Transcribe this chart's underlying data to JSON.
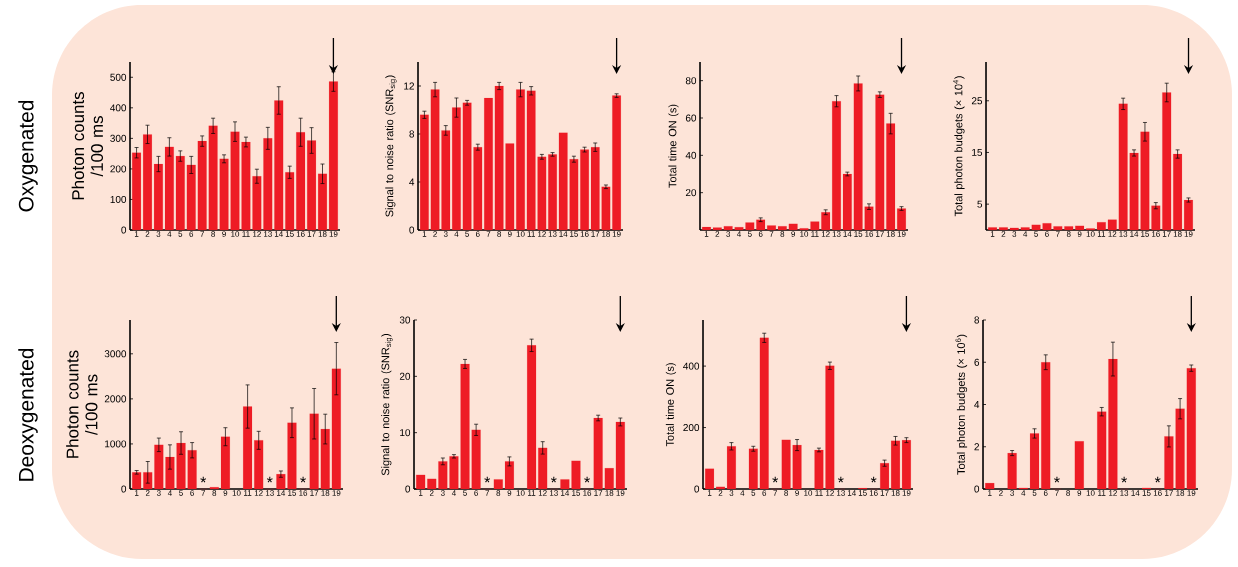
{
  "chart_data": [
    {
      "type": "bar",
      "ylabel": "Photon counts /100 ms",
      "annotations": [
        "Oxygenated"
      ],
      "categories": [
        "1",
        "2",
        "3",
        "4",
        "5",
        "6",
        "7",
        "8",
        "9",
        "10",
        "11",
        "12",
        "13",
        "14",
        "15",
        "16",
        "17",
        "18",
        "19"
      ],
      "color": "#ee1c25",
      "values": [
        253,
        313,
        216,
        272,
        242,
        213,
        291,
        341,
        233,
        322,
        288,
        176,
        300,
        424,
        189,
        320,
        293,
        184,
        486
      ],
      "errors": [
        17,
        30,
        25,
        30,
        17,
        28,
        17,
        25,
        13,
        32,
        16,
        23,
        36,
        45,
        20,
        46,
        42,
        32,
        32
      ],
      "ylim": [
        0,
        550
      ],
      "yticks": [
        0,
        100,
        200,
        300,
        400,
        500
      ]
    },
    {
      "type": "bar",
      "ylabel": "Signal to noise ratio (SNR$_{sig}$)",
      "categories": [
        "1",
        "2",
        "3",
        "4",
        "5",
        "6",
        "7",
        "8",
        "9",
        "10",
        "11",
        "12",
        "13",
        "14",
        "15",
        "16",
        "17",
        "18",
        "19"
      ],
      "color": "#ee1c25",
      "values": [
        9.6,
        11.7,
        8.3,
        10.2,
        10.6,
        6.9,
        11.0,
        12.0,
        7.2,
        11.7,
        11.6,
        6.1,
        6.3,
        8.1,
        5.9,
        6.7,
        6.9,
        3.6,
        11.2
      ],
      "errors": [
        0.3,
        0.6,
        0.4,
        0.8,
        0.2,
        0.25,
        null,
        0.3,
        null,
        0.6,
        0.35,
        0.2,
        0.15,
        null,
        0.25,
        0.2,
        0.35,
        0.15,
        0.15
      ],
      "ylim": [
        0,
        14
      ],
      "yticks": [
        0,
        4,
        8,
        12
      ]
    },
    {
      "type": "bar",
      "ylabel": "Total time ON (s)",
      "categories": [
        "1",
        "2",
        "3",
        "4",
        "5",
        "6",
        "7",
        "8",
        "9",
        "10",
        "11",
        "12",
        "13",
        "14",
        "15",
        "16",
        "17",
        "18",
        "19"
      ],
      "color": "#ee1c25",
      "values": [
        1.6,
        1.3,
        2.0,
        1.5,
        4.0,
        5.5,
        2.4,
        2.0,
        3.3,
        0.9,
        4.5,
        9.5,
        69,
        30,
        78.5,
        12.5,
        72.5,
        57,
        11.5
      ],
      "errors": [
        null,
        null,
        null,
        null,
        null,
        1,
        null,
        null,
        null,
        null,
        null,
        1.3,
        3,
        1,
        4,
        1.5,
        1.5,
        5.5,
        1
      ],
      "ylim": [
        0,
        90
      ],
      "yticks": [
        20,
        40,
        60,
        80
      ]
    },
    {
      "type": "bar",
      "ylabel": "Total photon budgets (× 10$^{4}$)",
      "categories": [
        "1",
        "2",
        "3",
        "4",
        "5",
        "6",
        "7",
        "8",
        "9",
        "10",
        "11",
        "12",
        "13",
        "14",
        "15",
        "16",
        "17",
        "18",
        "19"
      ],
      "color": "#ee1c25",
      "values": [
        0.5,
        0.5,
        0.4,
        0.5,
        1.0,
        1.3,
        0.7,
        0.7,
        0.8,
        0.3,
        1.5,
        2.0,
        24.4,
        14.9,
        19.0,
        4.7,
        26.6,
        14.7,
        5.8
      ],
      "errors": [
        null,
        null,
        null,
        null,
        null,
        null,
        null,
        null,
        null,
        null,
        null,
        null,
        1.1,
        0.6,
        1.8,
        0.6,
        1.8,
        0.8,
        0.4
      ],
      "ylim": [
        0,
        32.5
      ],
      "yticks": [
        5,
        15,
        25
      ]
    },
    {
      "type": "bar",
      "ylabel": "Photon counts /100 ms",
      "annotations": [
        "Deoxygenated",
        {
          "text": "*",
          "x": "7",
          "y": 0
        },
        {
          "text": "*",
          "x": "13",
          "y": 0
        },
        {
          "text": "*",
          "x": "16",
          "y": 0
        }
      ],
      "categories": [
        "1",
        "2",
        "3",
        "4",
        "5",
        "6",
        "7",
        "8",
        "9",
        "10",
        "11",
        "12",
        "13",
        "14",
        "15",
        "16",
        "17",
        "18",
        "19"
      ],
      "color": "#ee1c25",
      "values": [
        370,
        370,
        980,
        710,
        1020,
        860,
        0,
        40,
        1160,
        null,
        1830,
        1080,
        0,
        330,
        1470,
        0,
        1670,
        1330,
        2670
      ],
      "errors": [
        40,
        240,
        150,
        270,
        250,
        170,
        null,
        null,
        200,
        null,
        480,
        200,
        null,
        70,
        330,
        null,
        560,
        330,
        580
      ],
      "ylim": [
        0,
        3750
      ],
      "yticks": [
        0,
        1000,
        2000,
        3000
      ]
    },
    {
      "type": "bar",
      "ylabel": "Signal to noise ratio (SNR$_{sig}$)",
      "annotations": [
        {
          "text": "*",
          "x": "7",
          "y": 0
        },
        {
          "text": "*",
          "x": "13",
          "y": 0
        },
        {
          "text": "*",
          "x": "16",
          "y": 0
        }
      ],
      "categories": [
        "1",
        "2",
        "3",
        "4",
        "5",
        "6",
        "7",
        "8",
        "9",
        "10",
        "11",
        "12",
        "13",
        "14",
        "15",
        "16",
        "17",
        "18",
        "19"
      ],
      "color": "#ee1c25",
      "values": [
        2.5,
        1.8,
        4.9,
        5.8,
        22.2,
        10.5,
        0,
        1.7,
        4.9,
        null,
        25.5,
        7.3,
        0,
        1.7,
        5.0,
        0,
        12.6,
        3.7,
        11.9
      ],
      "errors": [
        null,
        null,
        0.6,
        0.3,
        0.8,
        1,
        null,
        null,
        0.8,
        null,
        1.1,
        1.1,
        null,
        null,
        null,
        null,
        0.5,
        null,
        0.7
      ],
      "ylim": [
        0,
        30
      ],
      "yticks": [
        0,
        10,
        20,
        30
      ]
    },
    {
      "type": "bar",
      "ylabel": "Total time ON (s)",
      "annotations": [
        {
          "text": "*",
          "x": "7",
          "y": 0
        },
        {
          "text": "*",
          "x": "13",
          "y": 0
        },
        {
          "text": "*",
          "x": "16",
          "y": 0
        }
      ],
      "categories": [
        "1",
        "2",
        "3",
        "4",
        "5",
        "6",
        "7",
        "8",
        "9",
        "10",
        "11",
        "12",
        "13",
        "14",
        "15",
        "16",
        "17",
        "18",
        "19"
      ],
      "color": "#ee1c25",
      "values": [
        66,
        7,
        139,
        null,
        131,
        492,
        0,
        160,
        143,
        null,
        127,
        401,
        0,
        null,
        3,
        0,
        84,
        157,
        159
      ],
      "errors": [
        null,
        null,
        12,
        null,
        8,
        15,
        null,
        null,
        18,
        null,
        6,
        12,
        null,
        null,
        null,
        null,
        10,
        14,
        8
      ],
      "ylim": [
        0,
        550
      ],
      "yticks": [
        0,
        200,
        400
      ]
    },
    {
      "type": "bar",
      "ylabel": "Total photon budgets (× 10$^{6}$)",
      "annotations": [
        {
          "text": "*",
          "x": "7",
          "y": 0
        },
        {
          "text": "*",
          "x": "13",
          "y": 0
        },
        {
          "text": "*",
          "x": "16",
          "y": 0
        }
      ],
      "categories": [
        "1",
        "2",
        "3",
        "4",
        "5",
        "6",
        "7",
        "8",
        "9",
        "10",
        "11",
        "12",
        "13",
        "14",
        "15",
        "16",
        "17",
        "18",
        "19"
      ],
      "color": "#ee1c25",
      "values": [
        0.28,
        null,
        1.7,
        0.05,
        2.63,
        6.0,
        0,
        null,
        2.26,
        null,
        3.66,
        6.15,
        0,
        null,
        0.05,
        0,
        2.49,
        3.8,
        5.72
      ],
      "errors": [
        null,
        null,
        0.12,
        null,
        0.22,
        0.35,
        null,
        null,
        null,
        null,
        0.2,
        0.8,
        null,
        null,
        null,
        null,
        0.5,
        0.48,
        0.15
      ],
      "ylim": [
        0,
        8
      ],
      "yticks": [
        0,
        2,
        4,
        6,
        8
      ]
    }
  ]
}
